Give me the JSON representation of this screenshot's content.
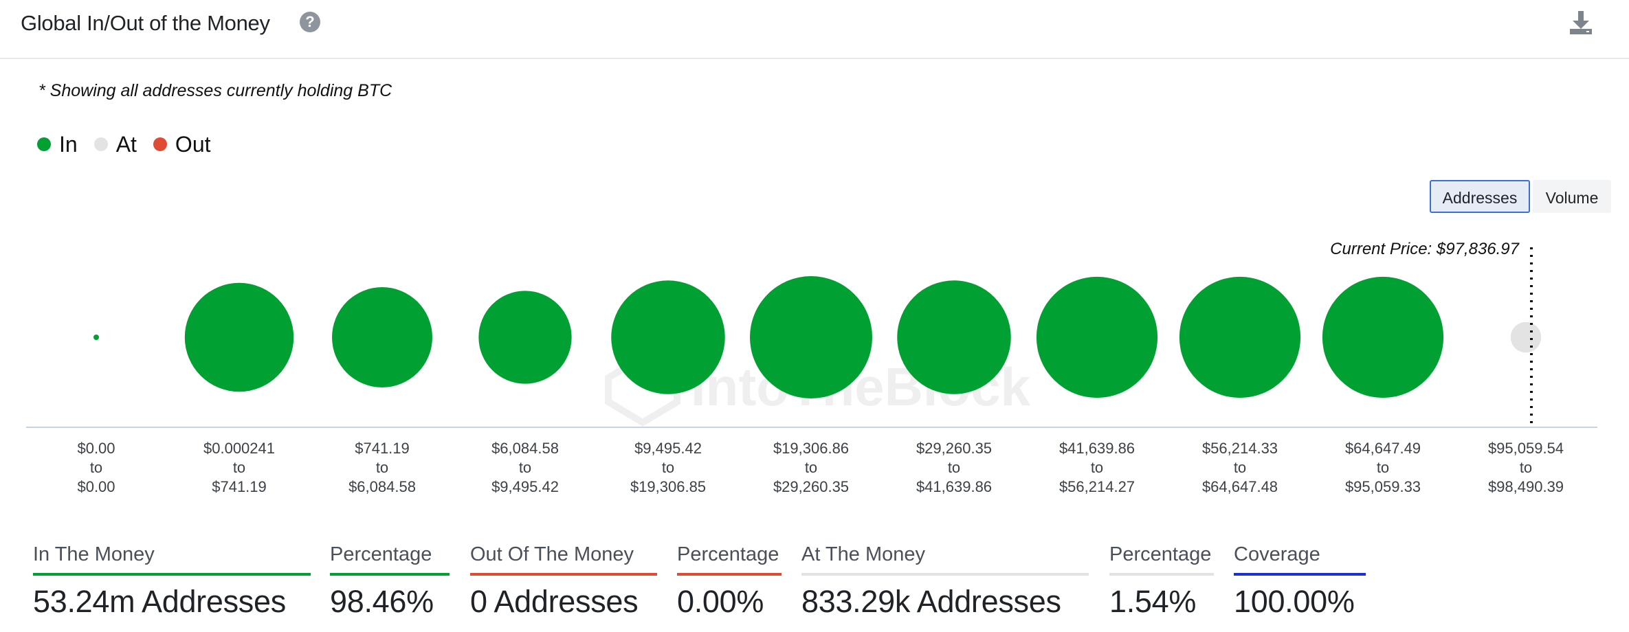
{
  "header": {
    "title": "Global In/Out of the Money",
    "help_icon": "question-circle-icon",
    "download_icon": "download-icon"
  },
  "subtitle": "* Showing all addresses currently holding BTC",
  "legend": [
    {
      "label": "In",
      "color": "#00a032"
    },
    {
      "label": "At",
      "color": "#e3e3e3"
    },
    {
      "label": "Out",
      "color": "#e04b33"
    }
  ],
  "toggles": {
    "addresses": "Addresses",
    "volume": "Volume",
    "selected": "addresses"
  },
  "watermark": "IntoTheBlock",
  "chart_data": {
    "type": "bubble",
    "current_price_label": "Current Price: $97,836.97",
    "current_price": 97836.97,
    "bubble_size_metric": "Addresses",
    "series": [
      "In",
      "At",
      "Out"
    ],
    "bins": [
      {
        "from": "$0.00",
        "to": "$0.00",
        "group": "In",
        "size": 0.04
      },
      {
        "from": "$0.000241",
        "to": "$741.19",
        "group": "In",
        "size": 0.89
      },
      {
        "from": "$741.19",
        "to": "$6,084.58",
        "group": "In",
        "size": 0.82
      },
      {
        "from": "$6,084.58",
        "to": "$9,495.42",
        "group": "In",
        "size": 0.76
      },
      {
        "from": "$9,495.42",
        "to": "$19,306.85",
        "group": "In",
        "size": 0.93
      },
      {
        "from": "$19,306.86",
        "to": "$29,260.35",
        "group": "In",
        "size": 1.0
      },
      {
        "from": "$29,260.35",
        "to": "$41,639.86",
        "group": "In",
        "size": 0.93
      },
      {
        "from": "$41,639.86",
        "to": "$56,214.27",
        "group": "In",
        "size": 0.99
      },
      {
        "from": "$56,214.33",
        "to": "$64,647.48",
        "group": "In",
        "size": 0.99
      },
      {
        "from": "$64,647.49",
        "to": "$95,059.33",
        "group": "In",
        "size": 0.99
      },
      {
        "from": "$95,059.54",
        "to": "$98,490.39",
        "group": "At",
        "size": 0.25
      }
    ],
    "range_separator": "to"
  },
  "stats": [
    {
      "label": "In The Money",
      "value": "53.24m Addresses",
      "color": "#00a032"
    },
    {
      "label": "Percentage",
      "value": "98.46%",
      "color": "#00a032"
    },
    {
      "label": "Out Of The Money",
      "value": "0 Addresses",
      "color": "#e04b33"
    },
    {
      "label": "Percentage",
      "value": "0.00%",
      "color": "#e04b33"
    },
    {
      "label": "At The Money",
      "value": "833.29k Addresses",
      "color": "#e3e3e3"
    },
    {
      "label": "Percentage",
      "value": "1.54%",
      "color": "#e3e3e3"
    },
    {
      "label": "Coverage",
      "value": "100.00%",
      "color": "#1a2fd6"
    }
  ]
}
